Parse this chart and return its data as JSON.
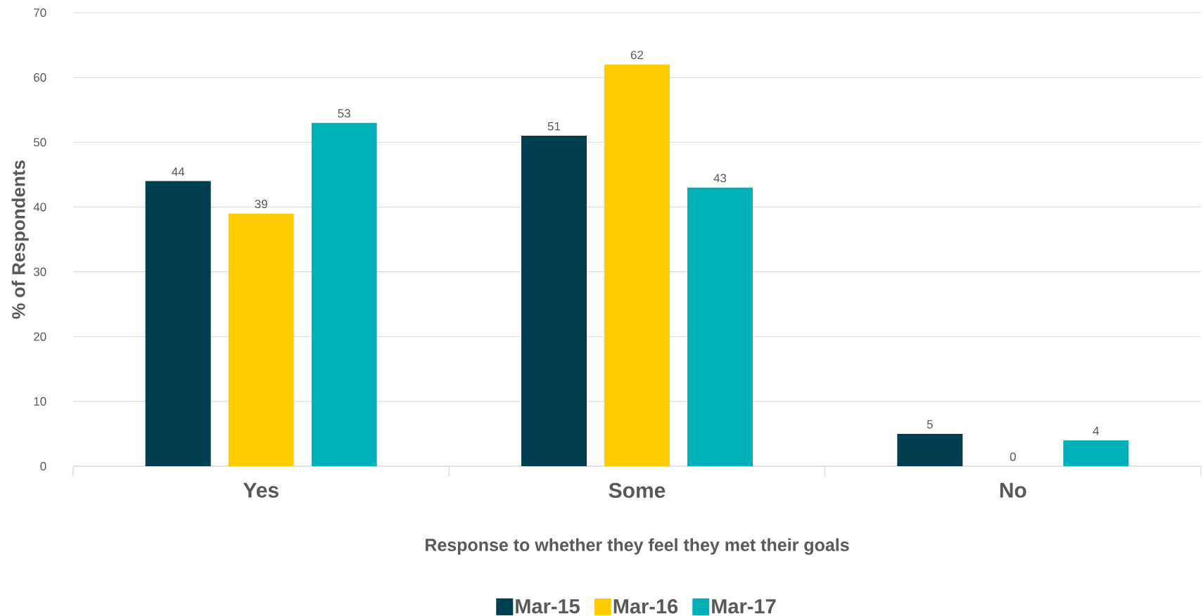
{
  "chart_data": {
    "type": "bar",
    "xlabel": "Response to whether they feel they met their goals",
    "ylabel": "% of Respondents",
    "categories": [
      "Yes",
      "Some",
      "No"
    ],
    "series": [
      {
        "name": "Mar-15",
        "color": "#003f52",
        "values": [
          44,
          51,
          5
        ]
      },
      {
        "name": "Mar-16",
        "color": "#ffcc00",
        "values": [
          39,
          62,
          0
        ]
      },
      {
        "name": "Mar-17",
        "color": "#00b0b9",
        "values": [
          53,
          43,
          4
        ]
      }
    ],
    "ylim": [
      0,
      70
    ],
    "yticks": [
      0,
      10,
      20,
      30,
      40,
      50,
      60,
      70
    ],
    "grid": "y",
    "legend": "bottom",
    "data_labels": true
  }
}
